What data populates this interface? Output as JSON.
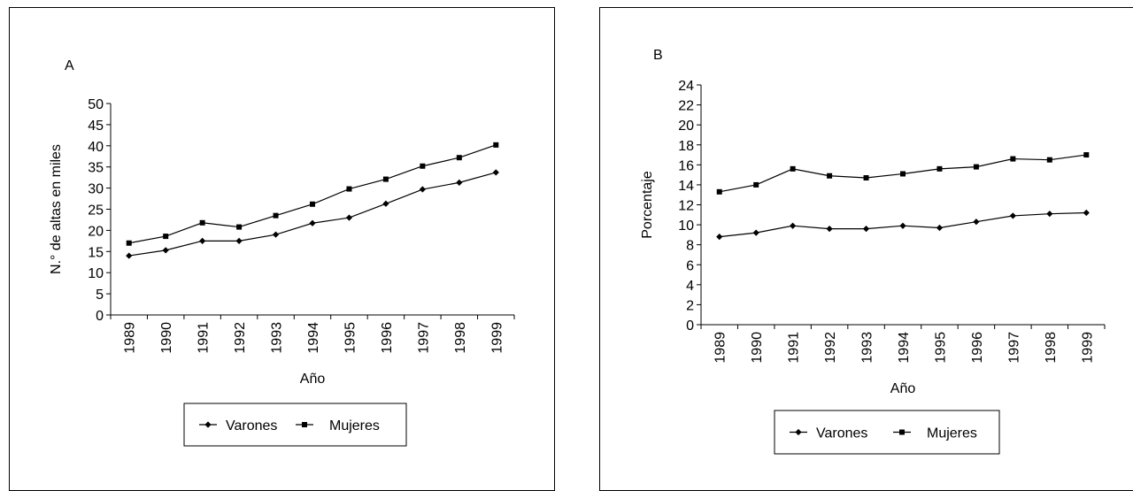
{
  "chart_data": [
    {
      "type": "line",
      "panel_label": "A",
      "xlabel": "Año",
      "ylabel": "N.° de altas en miles",
      "x": [
        "1989",
        "1990",
        "1991",
        "1992",
        "1993",
        "1994",
        "1995",
        "1996",
        "1997",
        "1998",
        "1999"
      ],
      "yticks": [
        "0",
        "5",
        "10",
        "15",
        "20",
        "25",
        "30",
        "35",
        "40",
        "45",
        "50"
      ],
      "ylim": [
        0,
        50
      ],
      "grid": false,
      "legend_position": "bottom-center",
      "series": [
        {
          "name": "Varones",
          "marker": "diamond",
          "values": [
            14,
            15.3,
            17.5,
            17.5,
            19,
            21.7,
            23,
            26.3,
            29.7,
            31.3,
            33.7
          ]
        },
        {
          "name": "Mujeres",
          "marker": "square",
          "values": [
            17,
            18.6,
            21.8,
            20.8,
            23.5,
            26.2,
            29.8,
            32.1,
            35.2,
            37.2,
            40.2
          ]
        }
      ]
    },
    {
      "type": "line",
      "panel_label": "B",
      "xlabel": "Año",
      "ylabel": "Porcentaje",
      "x": [
        "1989",
        "1990",
        "1991",
        "1992",
        "1993",
        "1994",
        "1995",
        "1996",
        "1997",
        "1998",
        "1999"
      ],
      "yticks": [
        "0",
        "2",
        "4",
        "6",
        "8",
        "10",
        "12",
        "14",
        "16",
        "18",
        "20",
        "22",
        "24"
      ],
      "ylim": [
        0,
        24
      ],
      "grid": false,
      "legend_position": "bottom-center",
      "series": [
        {
          "name": "Varones",
          "marker": "diamond",
          "values": [
            8.8,
            9.2,
            9.9,
            9.6,
            9.6,
            9.9,
            9.7,
            10.3,
            10.9,
            11.1,
            11.2
          ]
        },
        {
          "name": "Mujeres",
          "marker": "square",
          "values": [
            13.3,
            14,
            15.6,
            14.9,
            14.7,
            15.1,
            15.6,
            15.8,
            16.6,
            16.5,
            17
          ]
        }
      ]
    }
  ]
}
